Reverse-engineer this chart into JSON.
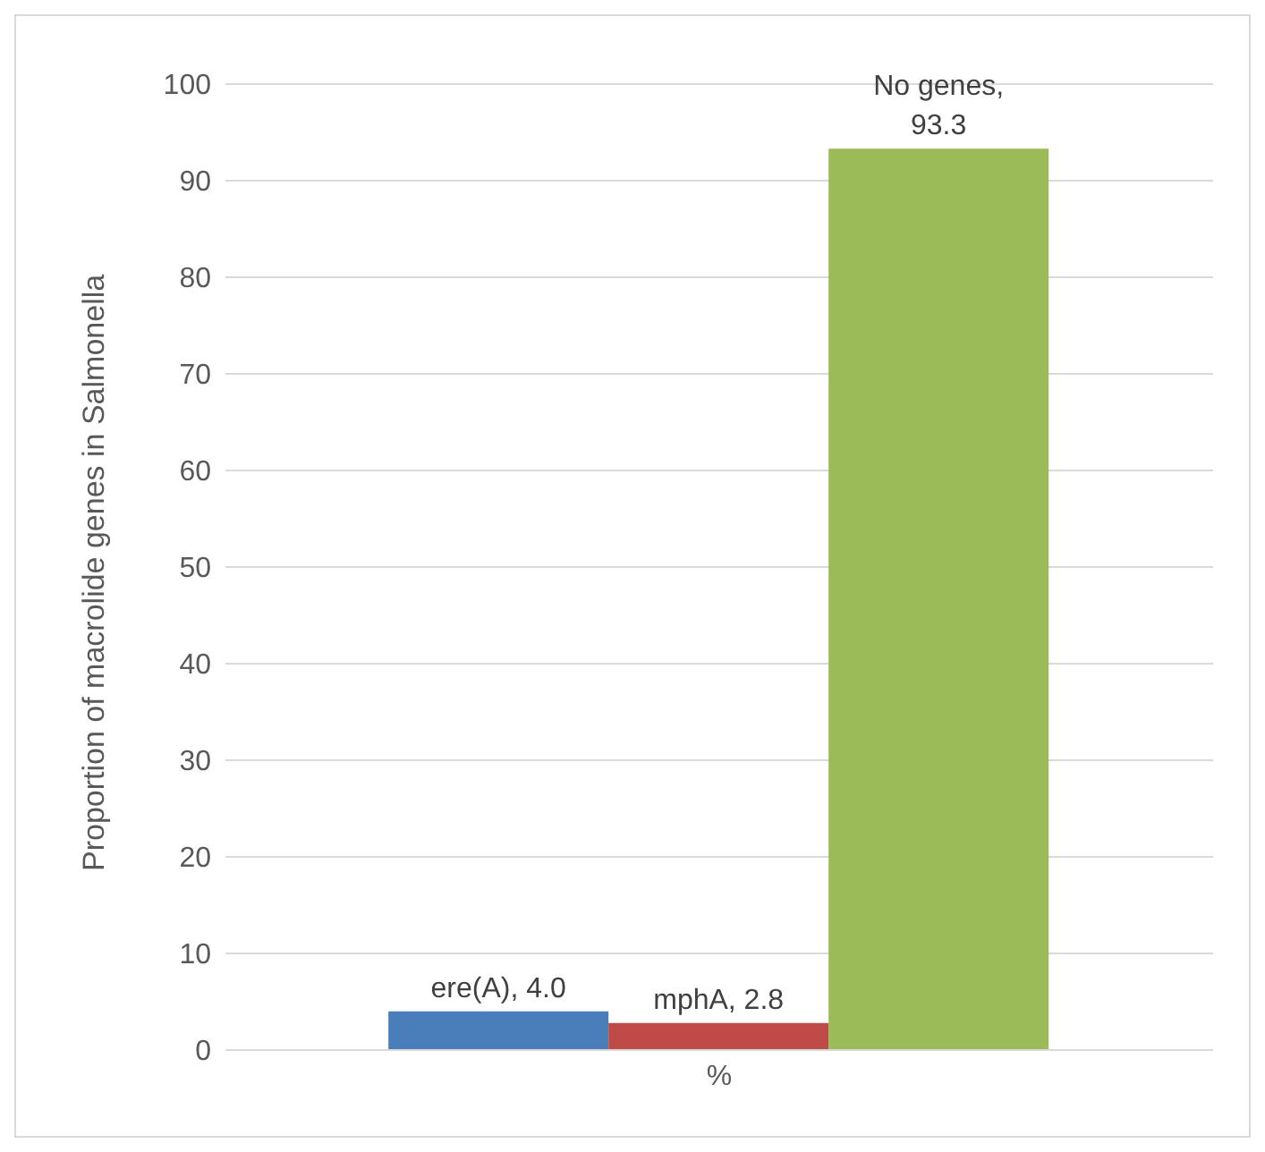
{
  "chart_data": {
    "type": "bar",
    "ylabel": "Proportion of macrolide genes in Salmonella",
    "categories": [
      "%"
    ],
    "series": [
      {
        "name": "ere(A)",
        "color": "#4a7ebb",
        "values": [
          4.0
        ],
        "value_labels": [
          ", 4.0"
        ]
      },
      {
        "name": "mphA",
        "color": "#be4b48",
        "values": [
          2.8
        ],
        "value_labels": [
          ", 2.8"
        ]
      },
      {
        "name": "No genes",
        "color": "#9bbb59",
        "values": [
          93.3
        ],
        "value_labels": [
          ", 93.3"
        ]
      }
    ],
    "ylim": [
      0,
      100
    ],
    "yticks": [
      0,
      10,
      20,
      30,
      40,
      50,
      60,
      70,
      80,
      90,
      100
    ],
    "grid": "y",
    "legend": false
  }
}
